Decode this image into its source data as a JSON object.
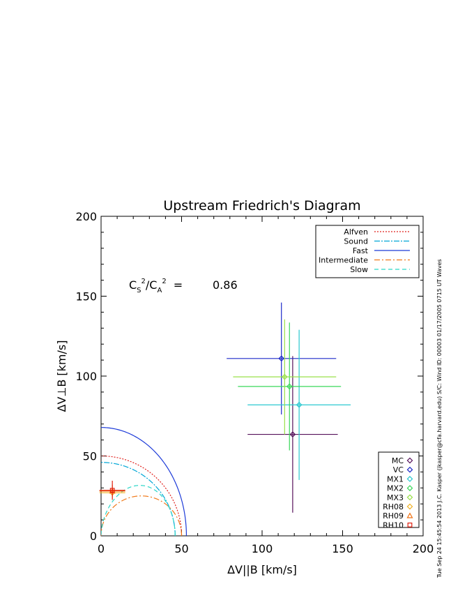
{
  "chart_data": {
    "type": "scatter",
    "title": "Upstream Friedrich's Diagram",
    "xlabel": "ΔV||B [km/s]",
    "ylabel": "ΔV⊥B [km/s]",
    "xlim": [
      0,
      200
    ],
    "ylim": [
      0,
      200
    ],
    "x_ticks": [
      "0",
      "50",
      "100",
      "150",
      "200"
    ],
    "y_ticks": [
      "0",
      "50",
      "100",
      "150",
      "200"
    ],
    "grid": false,
    "annotation": {
      "label_cs": "C",
      "label_cs_sub": "S",
      "label_ca": "C",
      "label_ca_sub": "A",
      "sup": "2",
      "slash": "/",
      "equals": "=",
      "value": "0.86"
    },
    "side_text": "Tue Sep 24 15:45:54 2013   J.C. Kasper (jkasper@cfa.harvard.edu)   S/C: Wind  ID: 00003 01/17/2005  0715 UT Waves",
    "curves_legend": [
      {
        "name": "Alfven",
        "color": "#e0201c",
        "dash": "2,2",
        "radius": 50
      },
      {
        "name": "Sound",
        "color": "#00a6d6",
        "dash": "8,2,2,2",
        "radius": 46
      },
      {
        "name": "Fast",
        "color": "#1c3ad8",
        "dash": "",
        "radius": 53
      },
      {
        "name": "Intermediate",
        "color": "#f07818",
        "dash": "8,3,2,3",
        "radius": 50
      },
      {
        "name": "Slow",
        "color": "#2cd6c8",
        "dash": "6,4",
        "radius": 46
      }
    ],
    "points_legend": [
      {
        "name": "MC",
        "color": "#55105a",
        "marker": "diamond"
      },
      {
        "name": "VC",
        "color": "#1c28c8",
        "marker": "diamond"
      },
      {
        "name": "MX1",
        "color": "#2ac8d0",
        "marker": "diamond"
      },
      {
        "name": "MX2",
        "color": "#3ad85a",
        "marker": "diamond"
      },
      {
        "name": "MX3",
        "color": "#9ae048",
        "marker": "diamond"
      },
      {
        "name": "RH08",
        "color": "#f0b020",
        "marker": "diamond"
      },
      {
        "name": "RH09",
        "color": "#f07010",
        "marker": "triangle"
      },
      {
        "name": "RH10",
        "color": "#e02010",
        "marker": "square"
      }
    ],
    "points": [
      {
        "name": "MC",
        "x": 119,
        "y": 63.5,
        "xerr": 28,
        "yerr": 49
      },
      {
        "name": "VC",
        "x": 112,
        "y": 111,
        "xerr": 34,
        "yerr": 35
      },
      {
        "name": "MX1",
        "x": 123,
        "y": 82,
        "xerr": 32,
        "yerr": 47
      },
      {
        "name": "MX2",
        "x": 117,
        "y": 93.5,
        "xerr": 32,
        "yerr": 40
      },
      {
        "name": "MX3",
        "x": 114,
        "y": 99.5,
        "xerr": 32,
        "yerr": 36
      },
      {
        "name": "RH08",
        "x": 7,
        "y": 27,
        "xerr": 8,
        "yerr": 2
      },
      {
        "name": "RH09",
        "x": 7,
        "y": 28,
        "xerr": 8,
        "yerr": 4
      },
      {
        "name": "RH10",
        "x": 7,
        "y": 28.5,
        "xerr": 8,
        "yerr": 6
      }
    ]
  }
}
